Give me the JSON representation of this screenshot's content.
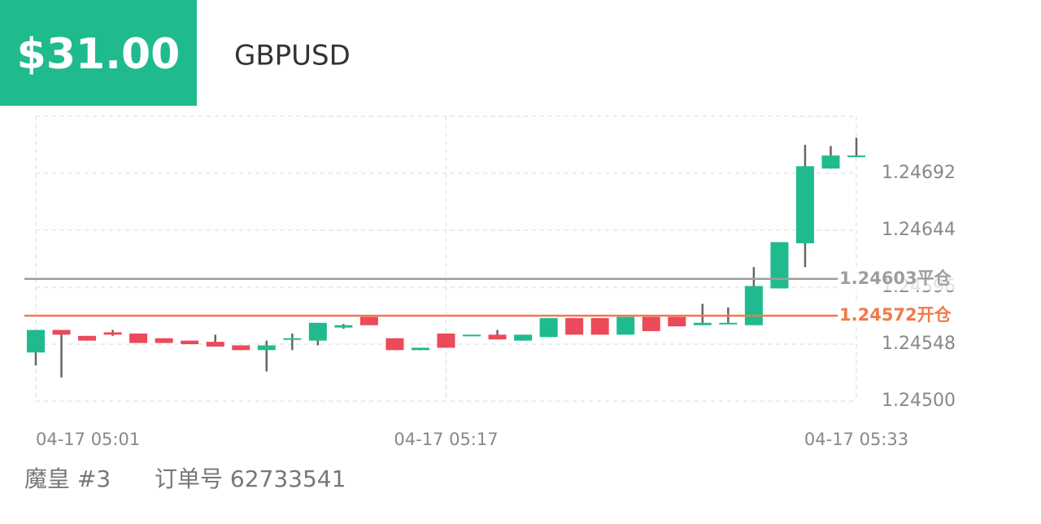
{
  "header": {
    "amount": "$31.00",
    "symbol": "GBPUSD"
  },
  "footer": {
    "name": "魔皇 #3",
    "order": "订单号 62733541"
  },
  "chart_data": {
    "type": "candlestick",
    "categories": [
      "04-17 05:01",
      null,
      null,
      null,
      null,
      null,
      null,
      null,
      null,
      null,
      null,
      null,
      null,
      null,
      null,
      null,
      "04-17 05:17",
      null,
      null,
      null,
      null,
      null,
      null,
      null,
      null,
      null,
      null,
      null,
      null,
      null,
      null,
      null,
      "04-17 05:33"
    ],
    "open": [
      1.24541,
      1.2456,
      1.24555,
      1.24558,
      1.24557,
      1.24553,
      1.24551,
      1.2455,
      1.24547,
      1.24543,
      1.24552,
      1.24551,
      1.24562,
      1.24571,
      1.24553,
      1.24543,
      1.24557,
      1.24555,
      1.24556,
      1.24551,
      1.24554,
      1.2457,
      1.2457,
      1.24556,
      1.24571,
      1.24571,
      1.24564,
      1.24565,
      1.24564,
      1.24595,
      1.24633,
      1.24696,
      1.24706
    ],
    "high": [
      1.2456,
      1.2456,
      1.24555,
      1.2456,
      1.24557,
      1.24553,
      1.24551,
      1.24556,
      1.24547,
      1.24551,
      1.24557,
      1.24566,
      1.24565,
      1.24571,
      1.24553,
      1.24545,
      1.24557,
      1.24556,
      1.2456,
      1.24556,
      1.2457,
      1.2457,
      1.2457,
      1.24571,
      1.24571,
      1.24571,
      1.24582,
      1.24579,
      1.24613,
      1.24634,
      1.24716,
      1.24715,
      1.24722
    ],
    "low": [
      1.2453,
      1.2452,
      1.24551,
      1.24555,
      1.24549,
      1.24549,
      1.24548,
      1.24546,
      1.24543,
      1.24525,
      1.24543,
      1.24547,
      1.24561,
      1.24564,
      1.24543,
      1.24543,
      1.24545,
      1.24555,
      1.24552,
      1.24551,
      1.24554,
      1.24556,
      1.24556,
      1.24556,
      1.24559,
      1.24563,
      1.24564,
      1.24565,
      1.24564,
      1.24595,
      1.24613,
      1.24696,
      1.24706
    ],
    "close": [
      1.2456,
      1.24556,
      1.24551,
      1.24556,
      1.24549,
      1.24549,
      1.24548,
      1.24546,
      1.24543,
      1.24547,
      1.24553,
      1.24566,
      1.24564,
      1.24564,
      1.24543,
      1.24545,
      1.24545,
      1.24556,
      1.24552,
      1.24556,
      1.2457,
      1.24556,
      1.24556,
      1.24571,
      1.24559,
      1.24563,
      1.24566,
      1.24566,
      1.24597,
      1.24634,
      1.24698,
      1.24707,
      1.24707
    ],
    "up_color": "#1fbb8e",
    "down_color": "#eb4a5a",
    "ylim": [
      1.245,
      1.2474
    ],
    "yticks": [
      {
        "value": 1.245,
        "label": "1.24500"
      },
      1.24548,
      1.24596,
      1.24644,
      1.24692
    ],
    "grid": true,
    "lines": [
      {
        "value": 1.24603,
        "label": "平仓",
        "color": "#9e9e9e"
      },
      {
        "value": 1.24572,
        "label": "开仓",
        "color": "#f07a4a"
      }
    ]
  }
}
